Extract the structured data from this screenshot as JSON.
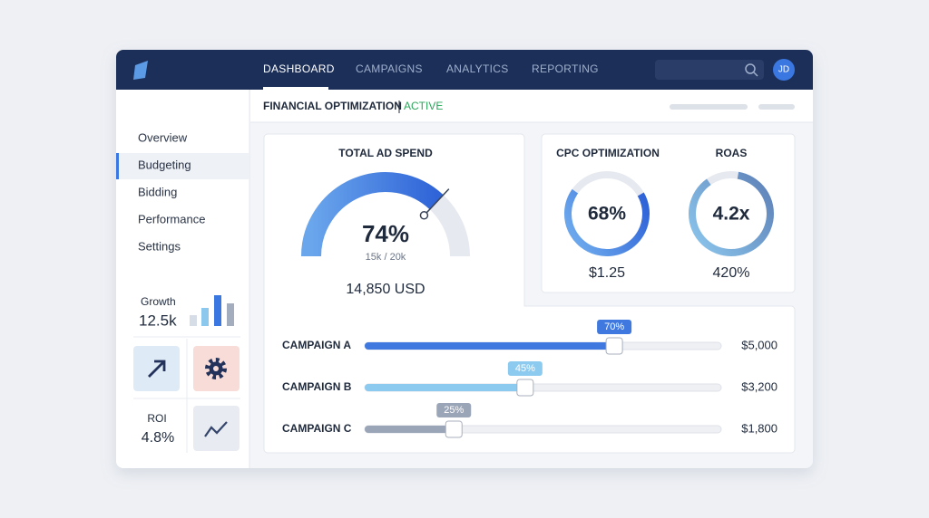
{
  "header": {
    "nav": [
      "DASHBOARD",
      "CAMPAIGNS",
      "ANALYTICS",
      "REPORTING"
    ],
    "avatar": "JD"
  },
  "sidebar": {
    "items": [
      "Overview",
      "Budgeting",
      "Bidding",
      "Performance",
      "Settings"
    ],
    "growth": {
      "label": "Growth",
      "value": "12.5k"
    },
    "roi": {
      "label": "ROI",
      "value": "4.8%"
    }
  },
  "page": {
    "title": "FINANCIAL OPTIMIZATION",
    "status": "ACTIVE"
  },
  "gauge": {
    "title": "TOTAL AD SPEND",
    "percent": {
      "value": 74,
      "label": "74%"
    },
    "ratio": "15k / 20k",
    "total": "14,850 USD"
  },
  "cpc": {
    "title": "CPC OPTIMIZATION",
    "percent": {
      "value": 68,
      "label": "68%"
    },
    "value": "$1.25"
  },
  "roas": {
    "title": "ROAS",
    "value": "4.2x",
    "percent": "420%"
  },
  "campaigns": [
    {
      "name": "CAMPAIGN A",
      "share": {
        "value": 70,
        "label": "70%"
      },
      "budget": "$5,000"
    },
    {
      "name": "CAMPAIGN B",
      "share": {
        "value": 45,
        "label": "45%"
      },
      "budget": "$3,200"
    },
    {
      "name": "CAMPAIGN C",
      "share": {
        "value": 25,
        "label": "25%"
      },
      "budget": "$1,800"
    }
  ]
}
